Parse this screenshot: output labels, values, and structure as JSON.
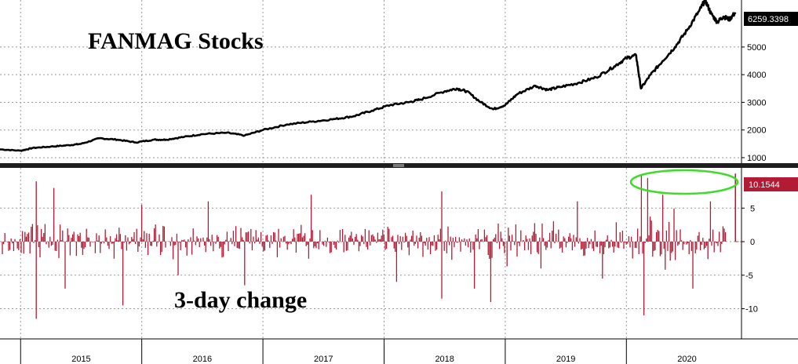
{
  "chart_data": [
    {
      "type": "line",
      "title": "FANMAG Stocks",
      "ylim": [
        800,
        6700
      ],
      "yticks": [
        1000,
        2000,
        3000,
        4000,
        5000
      ],
      "last_value_label": "6259.3398",
      "last_value": 6259.3398,
      "x_range": [
        2014.83,
        2020.95
      ],
      "grid": true,
      "line_color": "#000000",
      "x": [
        2014.83,
        2015.0,
        2015.1,
        2015.25,
        2015.4,
        2015.5,
        2015.65,
        2015.8,
        2015.95,
        2016.1,
        2016.2,
        2016.35,
        2016.5,
        2016.7,
        2016.85,
        2017.0,
        2017.2,
        2017.4,
        2017.6,
        2017.75,
        2017.9,
        2018.05,
        2018.2,
        2018.3,
        2018.5,
        2018.6,
        2018.68,
        2018.8,
        2018.9,
        2019.0,
        2019.1,
        2019.25,
        2019.35,
        2019.45,
        2019.6,
        2019.75,
        2019.9,
        2020.0,
        2020.08,
        2020.12,
        2020.2,
        2020.3,
        2020.4,
        2020.5,
        2020.6,
        2020.65,
        2020.7,
        2020.75,
        2020.8,
        2020.85,
        2020.9
      ],
      "y": [
        1300,
        1250,
        1350,
        1400,
        1450,
        1500,
        1700,
        1650,
        1550,
        1650,
        1650,
        1750,
        1850,
        1900,
        1800,
        2000,
        2200,
        2300,
        2400,
        2500,
        2700,
        2900,
        3000,
        3100,
        3400,
        3500,
        3400,
        3000,
        2750,
        2900,
        3300,
        3600,
        3450,
        3550,
        3700,
        3900,
        4300,
        4600,
        4700,
        3500,
        4000,
        4500,
        5000,
        5600,
        6300,
        6700,
        6200,
        5900,
        6100,
        6000,
        6250
      ]
    },
    {
      "type": "bar",
      "subtitle": "3-day change",
      "ylim": [
        -14.5,
        11
      ],
      "yticks": [
        -10,
        -5,
        0,
        5
      ],
      "last_value_label": "10.1544",
      "last_value": 10.1544,
      "bar_color": "#b31b34",
      "highlight_color": "#3fdc2a",
      "x_range": [
        2014.83,
        2020.95
      ],
      "spikes": [
        {
          "x": 2015.13,
          "y": 9.0
        },
        {
          "x": 2015.13,
          "y": -11.5
        },
        {
          "x": 2015.28,
          "y": 8.0
        },
        {
          "x": 2015.37,
          "y": -7.0
        },
        {
          "x": 2015.85,
          "y": -9.5
        },
        {
          "x": 2016.0,
          "y": 5.5
        },
        {
          "x": 2016.3,
          "y": -5.0
        },
        {
          "x": 2016.55,
          "y": 6.0
        },
        {
          "x": 2016.85,
          "y": -6.5
        },
        {
          "x": 2017.4,
          "y": 7.0
        },
        {
          "x": 2018.1,
          "y": -6.0
        },
        {
          "x": 2018.48,
          "y": 7.5
        },
        {
          "x": 2018.48,
          "y": -8.5
        },
        {
          "x": 2018.75,
          "y": -7.0
        },
        {
          "x": 2018.88,
          "y": -9.0
        },
        {
          "x": 2019.3,
          "y": -4.0
        },
        {
          "x": 2019.6,
          "y": 6.0
        },
        {
          "x": 2019.8,
          "y": -5.5
        },
        {
          "x": 2020.12,
          "y": 10.0
        },
        {
          "x": 2020.15,
          "y": -11.0
        },
        {
          "x": 2020.18,
          "y": 9.5
        },
        {
          "x": 2020.3,
          "y": 7.0
        },
        {
          "x": 2020.55,
          "y": -7.0
        },
        {
          "x": 2020.7,
          "y": 6.0
        },
        {
          "x": 2020.85,
          "y": -5.0
        },
        {
          "x": 2020.9,
          "y": 10.1544
        }
      ]
    }
  ],
  "x_axis": {
    "tick_labels": [
      "2015",
      "2016",
      "2017",
      "2018",
      "2019",
      "2020"
    ],
    "tick_centers": [
      2015.5,
      2016.5,
      2017.5,
      2018.5,
      2019.5,
      2020.5
    ]
  }
}
